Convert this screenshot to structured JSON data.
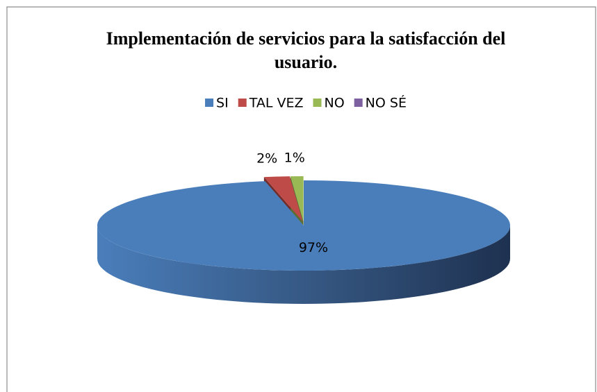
{
  "chart_data": {
    "type": "pie3d",
    "title": [
      "Implementación de servicios para la satisfacción del",
      "usuario."
    ],
    "categories": [
      "SI",
      "TAL VEZ",
      "NO",
      "NO SÉ"
    ],
    "values": [
      97,
      2,
      1,
      0
    ],
    "value_labels": [
      "97%",
      "2%",
      "1%",
      null
    ],
    "colors": [
      "#4a7ebb",
      "#be4b48",
      "#98b954",
      "#7d60a0"
    ],
    "legend": "top"
  }
}
